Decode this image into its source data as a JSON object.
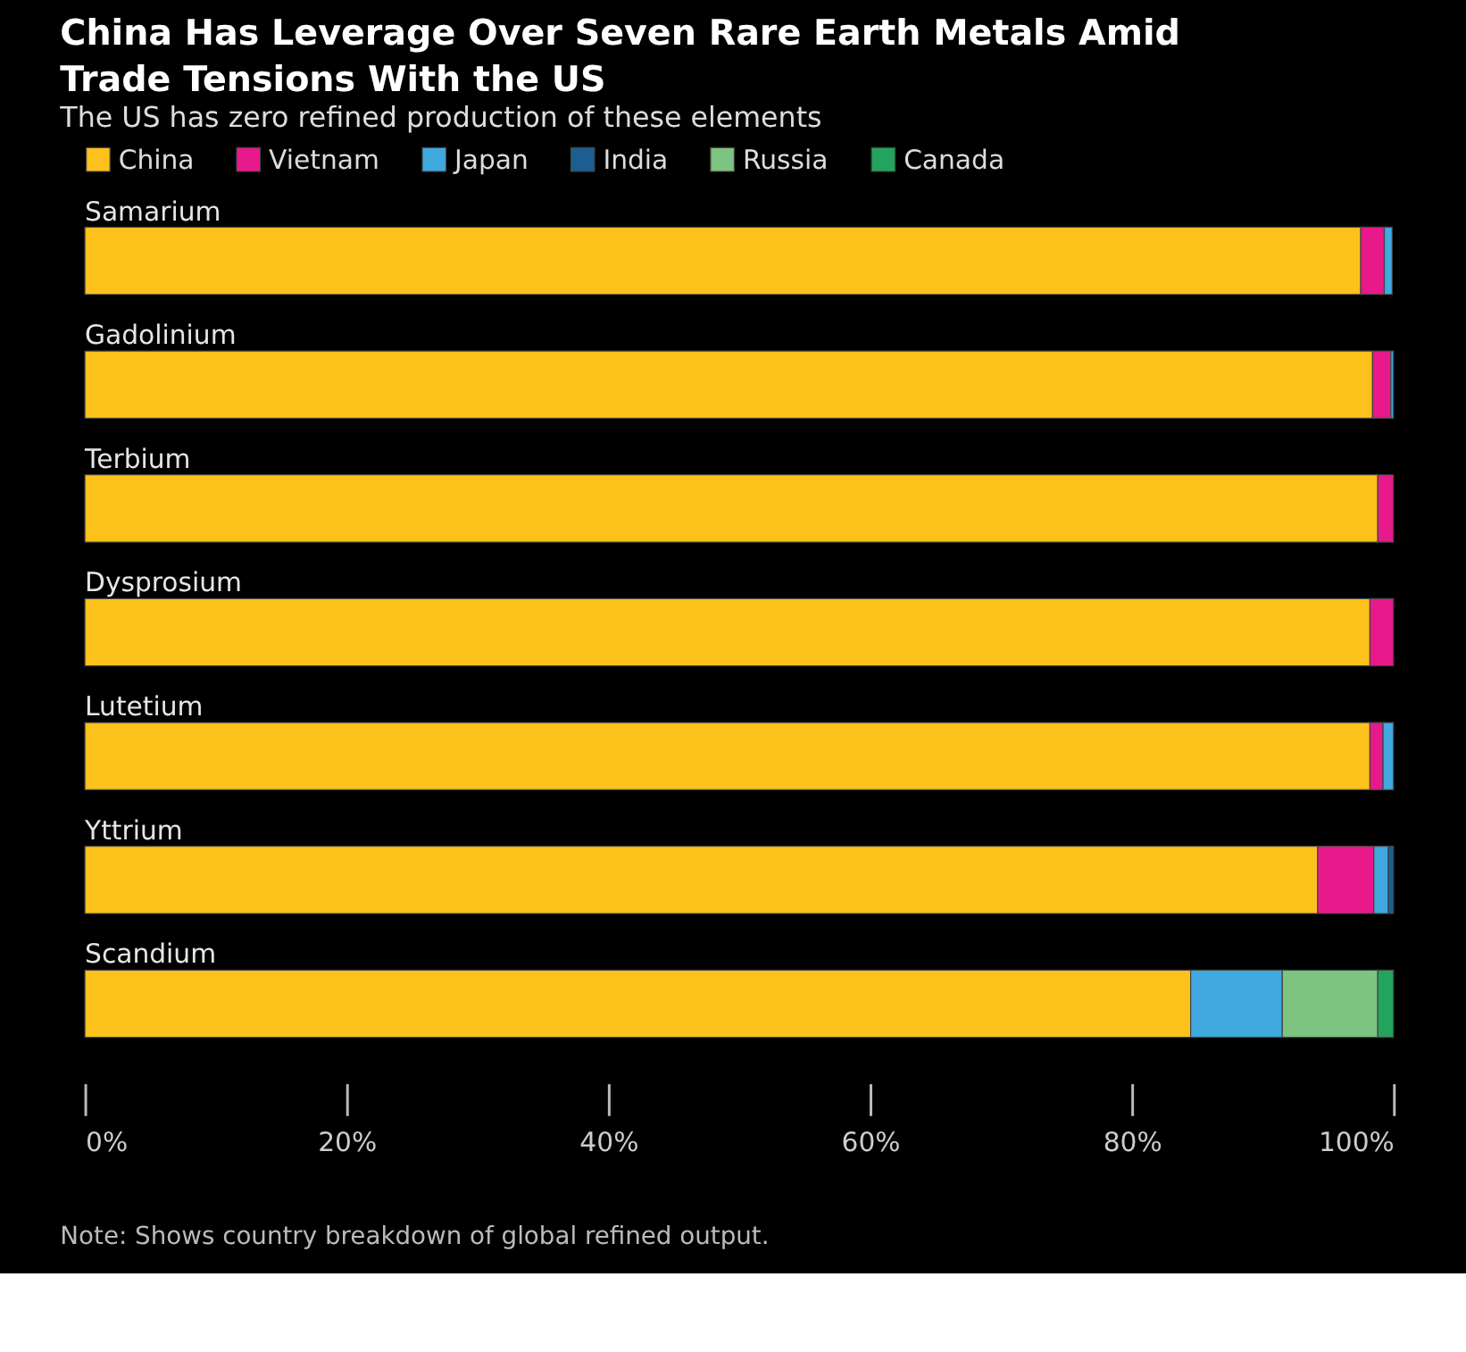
{
  "chart_data": {
    "type": "bar",
    "orientation": "horizontal",
    "stacked": true,
    "title": "China Has Leverage Over Seven Rare Earth Metals Amid Trade Tensions With the US",
    "subtitle": "The US has zero refined production of these elements",
    "categories": [
      "Samarium",
      "Gadolinium",
      "Terbium",
      "Dysprosium",
      "Lutetium",
      "Yttrium",
      "Scandium"
    ],
    "series": [
      {
        "name": "China",
        "color": "#fcc21b",
        "values": [
          97.5,
          98.4,
          98.8,
          98.2,
          98.2,
          94.2,
          84.5
        ]
      },
      {
        "name": "Vietnam",
        "color": "#e8198b",
        "values": [
          1.8,
          1.4,
          1.2,
          1.8,
          1.0,
          4.3,
          null
        ]
      },
      {
        "name": "Japan",
        "color": "#3fa9e0",
        "values": [
          0.6,
          0.2,
          null,
          null,
          0.8,
          1.1,
          7.0
        ]
      },
      {
        "name": "India",
        "color": "#1b5e8f",
        "values": [
          null,
          null,
          null,
          null,
          null,
          0.4,
          null
        ]
      },
      {
        "name": "Russia",
        "color": "#7cc47f",
        "values": [
          null,
          null,
          null,
          null,
          null,
          null,
          7.3
        ]
      },
      {
        "name": "Canada",
        "color": "#22a45d",
        "values": [
          null,
          null,
          null,
          null,
          null,
          null,
          1.2
        ]
      }
    ],
    "xlim": [
      0,
      100
    ],
    "xticks": [
      {
        "value": 0,
        "label": "0%"
      },
      {
        "value": 20,
        "label": "20%"
      },
      {
        "value": 40,
        "label": "40%"
      },
      {
        "value": 60,
        "label": "60%"
      },
      {
        "value": 80,
        "label": "80%"
      },
      {
        "value": 100,
        "label": "100%"
      }
    ],
    "grid": false,
    "legend": "top left",
    "tick_labels": "x",
    "annotations": [
      "Note: Shows country breakdown of global refined output."
    ]
  }
}
